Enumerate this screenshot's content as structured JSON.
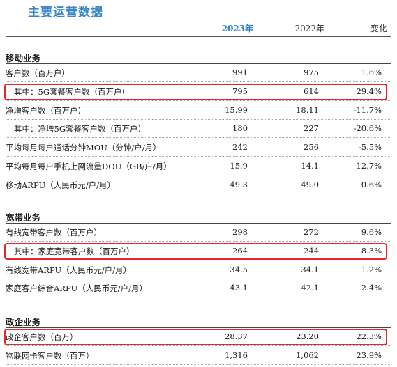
{
  "title": "主要运营数据",
  "headers": {
    "y2023": "2023年",
    "y2022": "2022年",
    "change": "变化"
  },
  "sections": [
    {
      "title": "移动业务",
      "rows": [
        {
          "label": "客户数（百万户）",
          "v2023": "991",
          "v2022": "975",
          "change": "1.6%"
        },
        {
          "label": "其中：5G套餐客户数（百万户）",
          "v2023": "795",
          "v2022": "614",
          "change": "29.4%",
          "sub": true,
          "highlight": true
        },
        {
          "label": "净增客户数（百万户）",
          "v2023": "15.99",
          "v2022": "18.11",
          "change": "-11.7%"
        },
        {
          "label": "其中：净增5G套餐客户数（百万户）",
          "v2023": "180",
          "v2022": "227",
          "change": "-20.6%",
          "sub": true
        },
        {
          "label": "平均每月每户通话分钟MOU（分钟/户/月）",
          "v2023": "242",
          "v2022": "256",
          "change": "-5.5%"
        },
        {
          "label": "平均每月每户手机上网流量DOU（GB/户/月）",
          "v2023": "15.9",
          "v2022": "14.1",
          "change": "12.7%"
        },
        {
          "label": "移动ARPU（人民币元/户/月）",
          "v2023": "49.3",
          "v2022": "49.0",
          "change": "0.6%"
        }
      ]
    },
    {
      "title": "宽带业务",
      "rows": [
        {
          "label": "有线宽带客户数（百万户）",
          "v2023": "298",
          "v2022": "272",
          "change": "9.6%"
        },
        {
          "label": "其中：家庭宽带客户数（百万户）",
          "v2023": "264",
          "v2022": "244",
          "change": "8.3%",
          "sub": true,
          "highlight": true
        },
        {
          "label": "有线宽带ARPU（人民币元/户/月）",
          "v2023": "34.5",
          "v2022": "34.1",
          "change": "1.2%"
        },
        {
          "label": "家庭客户综合ARPU（人民币元/户/月）",
          "v2023": "43.1",
          "v2022": "42.1",
          "change": "2.4%"
        }
      ]
    },
    {
      "title": "政企业务",
      "rows": [
        {
          "label": "政企客户数（百万）",
          "v2023": "28.37",
          "v2022": "23.20",
          "change": "22.3%",
          "highlight": true
        },
        {
          "label": "物联网卡客户数（百万）",
          "v2023": "1,316",
          "v2022": "1,062",
          "change": "23.9%"
        }
      ]
    }
  ]
}
